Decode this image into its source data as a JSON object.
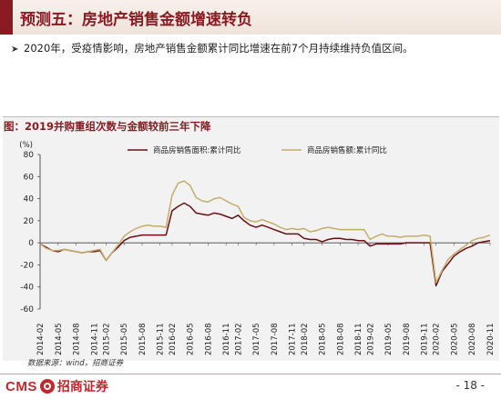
{
  "slide": {
    "title": "预测五：房地产销售金额增速转负",
    "bullet_icon": "arrow-bullet-icon",
    "bullet": "2020年，受疫情影响，房地产销售金额累计同比增速在前7个月持续维持负值区间。",
    "source": "数据来源：wind，招商证券",
    "page": "- 18 -"
  },
  "brand": {
    "logo_text": "CMS",
    "logo_icon": "cms-seal-icon",
    "name": "招商证券",
    "accent_color": "#8b1a22",
    "brand_color": "#c0282e"
  },
  "chart_data": {
    "type": "line",
    "title": "图：2019并购重组次数与金额较前三年下降",
    "ylabel": "(%)",
    "xlabel": "",
    "ylim": [
      -60,
      80
    ],
    "yticks": [
      -60,
      -40,
      -20,
      0,
      20,
      40,
      60,
      80
    ],
    "grid": false,
    "legend_position": "top",
    "x_tick_labels": [
      "2014-02",
      "2014-05",
      "2014-08",
      "2014-11",
      "2015-02",
      "2015-05",
      "2015-08",
      "2015-11",
      "2016-02",
      "2016-05",
      "2016-08",
      "2016-11",
      "2017-02",
      "2017-05",
      "2017-08",
      "2017-11",
      "2018-02",
      "2018-05",
      "2018-08",
      "2018-11",
      "2019-02",
      "2019-05",
      "2019-08",
      "2019-11",
      "2020-02",
      "2020-05",
      "2020-08",
      "2020-11"
    ],
    "x": [
      "2014-02",
      "2014-03",
      "2014-04",
      "2014-05",
      "2014-06",
      "2014-07",
      "2014-08",
      "2014-09",
      "2014-10",
      "2014-11",
      "2014-12",
      "2015-02",
      "2015-03",
      "2015-04",
      "2015-05",
      "2015-06",
      "2015-07",
      "2015-08",
      "2015-09",
      "2015-10",
      "2015-11",
      "2015-12",
      "2016-02",
      "2016-03",
      "2016-04",
      "2016-05",
      "2016-06",
      "2016-07",
      "2016-08",
      "2016-09",
      "2016-10",
      "2016-11",
      "2016-12",
      "2017-02",
      "2017-03",
      "2017-04",
      "2017-05",
      "2017-06",
      "2017-07",
      "2017-08",
      "2017-09",
      "2017-10",
      "2017-11",
      "2017-12",
      "2018-02",
      "2018-03",
      "2018-04",
      "2018-05",
      "2018-06",
      "2018-07",
      "2018-08",
      "2018-09",
      "2018-10",
      "2018-11",
      "2018-12",
      "2019-02",
      "2019-03",
      "2019-04",
      "2019-05",
      "2019-06",
      "2019-07",
      "2019-08",
      "2019-09",
      "2019-10",
      "2019-11",
      "2019-12",
      "2020-02",
      "2020-03",
      "2020-04",
      "2020-05",
      "2020-06",
      "2020-07",
      "2020-08",
      "2020-09",
      "2020-10",
      "2020-11"
    ],
    "series": [
      {
        "name": "商品房销售面积:累计同比",
        "color": "#6b0f12",
        "values": [
          -1,
          -4,
          -7,
          -8,
          -6,
          -7,
          -8,
          -9,
          -8,
          -8,
          -7,
          -16,
          -9,
          -4,
          2,
          5,
          6,
          7,
          7,
          7,
          7,
          7,
          29,
          33,
          36,
          33,
          27,
          26,
          25,
          27,
          26,
          24,
          22,
          25,
          20,
          16,
          14,
          16,
          14,
          12,
          10,
          8,
          8,
          8,
          4,
          3,
          3,
          1,
          3,
          4,
          4,
          3,
          3,
          2,
          2,
          -3,
          -1,
          -1,
          -1,
          -1,
          -1,
          0,
          0,
          0,
          0,
          0,
          -39,
          -26,
          -19,
          -12,
          -8,
          -5,
          -3,
          0,
          1,
          2
        ]
      },
      {
        "name": "商品房销售额:累计同比",
        "color": "#c4ad6b",
        "values": [
          -1,
          -5,
          -7,
          -7,
          -6,
          -7,
          -8,
          -9,
          -8,
          -7,
          -6,
          -16,
          -9,
          -2,
          6,
          10,
          13,
          15,
          16,
          15,
          15,
          14,
          43,
          54,
          56,
          52,
          41,
          38,
          37,
          40,
          41,
          38,
          35,
          33,
          23,
          20,
          19,
          21,
          19,
          17,
          14,
          12,
          13,
          12,
          13,
          10,
          11,
          13,
          14,
          13,
          12,
          12,
          12,
          12,
          12,
          3,
          6,
          8,
          6,
          6,
          5,
          6,
          6,
          6,
          7,
          6,
          -36,
          -25,
          -15,
          -10,
          -6,
          -2,
          2,
          4,
          5,
          7
        ]
      }
    ]
  }
}
